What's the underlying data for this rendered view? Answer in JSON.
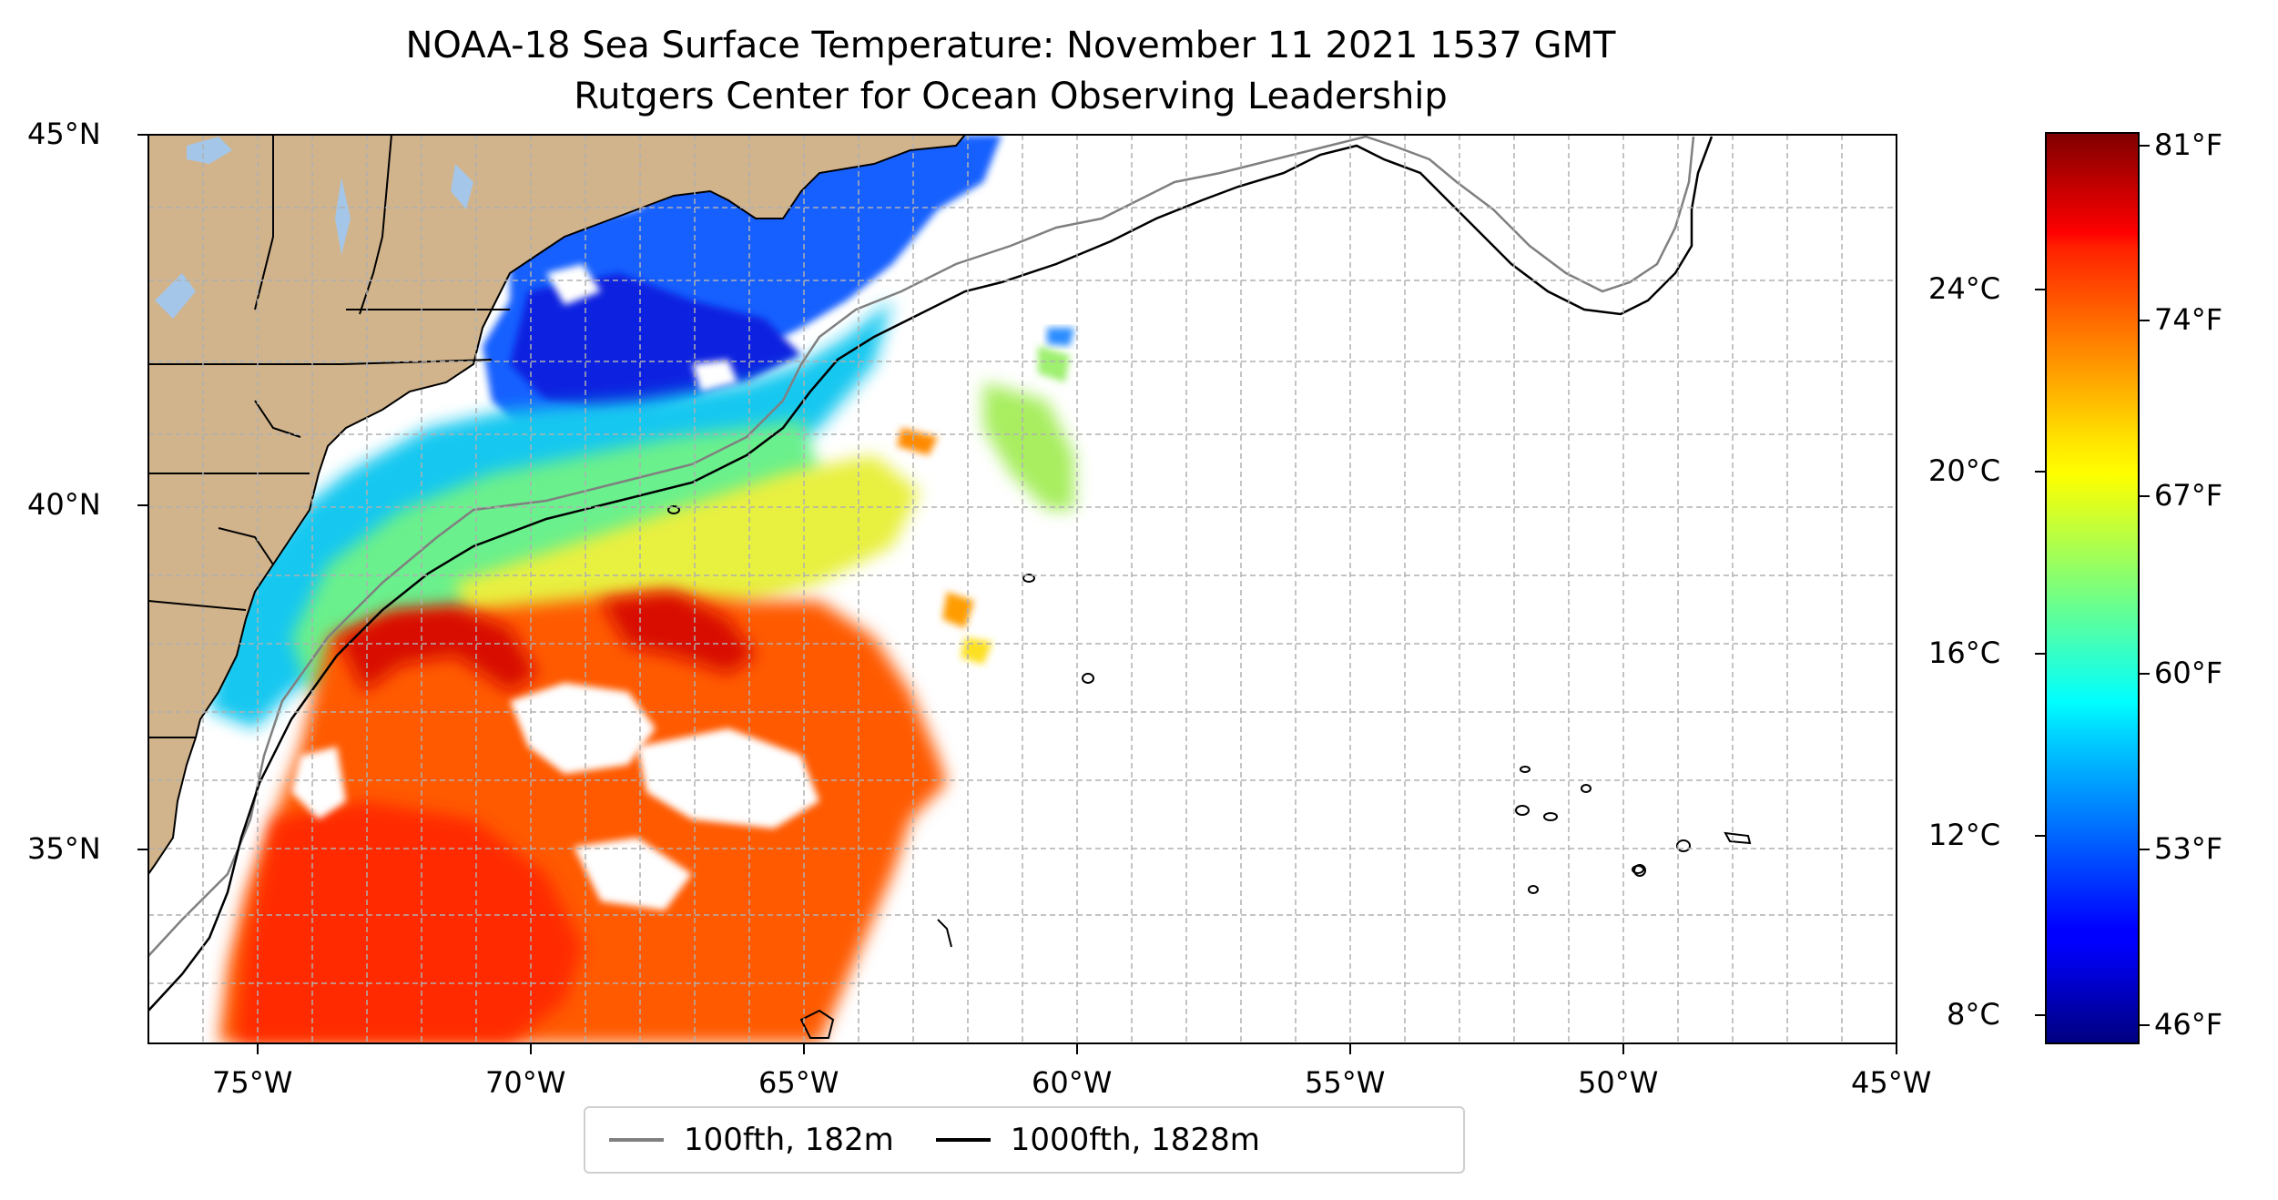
{
  "title": "NOAA-18 Sea Surface Temperature: November 11 2021 1537 GMT",
  "subtitle": "Rutgers Center for Ocean Observing Leadership",
  "axes": {
    "x_ticks": [
      "75°W",
      "70°W",
      "65°W",
      "60°W",
      "55°W",
      "50°W",
      "45°W"
    ],
    "y_ticks": [
      "45°N",
      "40°N",
      "35°N"
    ],
    "x_range_lon": [
      -77,
      -45
    ],
    "y_range_lat": [
      32.4,
      45
    ],
    "grid": true
  },
  "colorbar": {
    "celsius_ticks": [
      "24°C",
      "20°C",
      "16°C",
      "12°C",
      "8°C"
    ],
    "fahrenheit_ticks": [
      "81°F",
      "74°F",
      "67°F",
      "60°F",
      "53°F",
      "46°F"
    ],
    "colormap": "jet",
    "range_f": [
      46,
      81
    ]
  },
  "legend": {
    "items": [
      {
        "label": "100fth, 182m",
        "color": "#808080"
      },
      {
        "label": "1000fth, 1828m",
        "color": "#000000"
      }
    ]
  },
  "colors": {
    "land": "#d2b48c",
    "lakes": "#a4c6e8",
    "no_data": "#ffffff"
  }
}
